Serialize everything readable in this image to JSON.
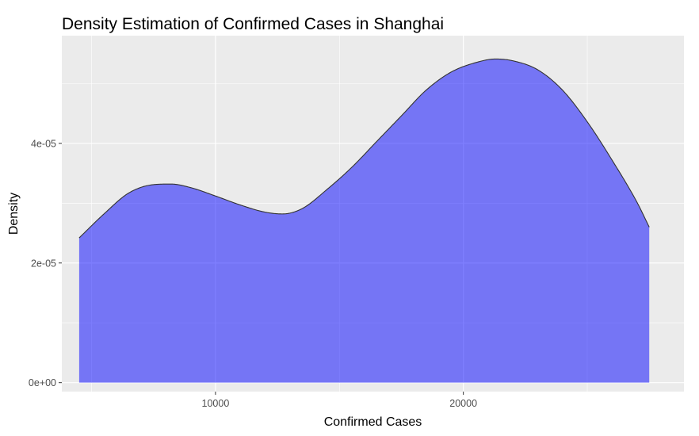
{
  "chart_data": {
    "type": "area",
    "title": "Density Estimation of Confirmed Cases in Shanghai",
    "xlabel": "Confirmed Cases",
    "ylabel": "Density",
    "xlim": [
      3800,
      28900
    ],
    "ylim": [
      -1.5e-06,
      5.8e-05
    ],
    "x_ticks": [
      10000,
      20000
    ],
    "x_tick_labels": [
      "10000",
      "20000"
    ],
    "y_ticks": [
      0,
      2e-05,
      4e-05
    ],
    "y_tick_labels": [
      "0e+00",
      "2e-05",
      "4e-05"
    ],
    "grid": true,
    "legend": "none",
    "series": [
      {
        "x": [
          4500,
          5500,
          6500,
          7500,
          8200,
          9000,
          10000,
          11000,
          12000,
          12700,
          13500,
          14500,
          15500,
          16500,
          17500,
          18500,
          19500,
          20500,
          21300,
          22000,
          23000,
          24000,
          25000,
          26000,
          27000,
          27500
        ],
        "y": [
          2.42e-05,
          2.82e-05,
          3.17e-05,
          3.31e-05,
          3.32e-05,
          3.26e-05,
          3.12e-05,
          2.97e-05,
          2.85e-05,
          2.82e-05,
          2.91e-05,
          3.23e-05,
          3.6e-05,
          4.03e-05,
          4.46e-05,
          4.89e-05,
          5.19e-05,
          5.35e-05,
          5.41e-05,
          5.38e-05,
          5.23e-05,
          4.89e-05,
          4.36e-05,
          3.72e-05,
          3.02e-05,
          2.6e-05
        ]
      }
    ]
  },
  "colors": {
    "panel_background": "#ebebeb",
    "grid_line": "#ffffff",
    "area_fill": "#0000ff",
    "area_opacity": 0.5,
    "area_outline": "#333333"
  }
}
